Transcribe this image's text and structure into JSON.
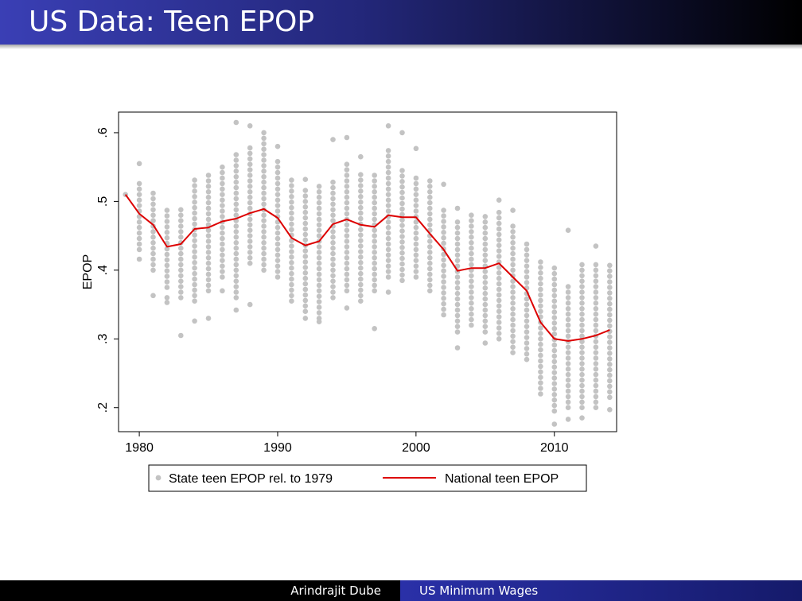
{
  "slide": {
    "title": "US Data: Teen EPOP",
    "footer_author": "Arindrajit Dube",
    "footer_talk": "US Minimum Wages"
  },
  "colors": {
    "header_start": "#3a3fb5",
    "header_end": "#000000",
    "scatter": "#c3c3c3",
    "line": "#dd0000"
  },
  "chart_data": {
    "type": "scatter",
    "title": "",
    "xlabel": "",
    "ylabel": "EPOP",
    "xlim": [
      1978.5,
      2014.5
    ],
    "ylim": [
      0.165,
      0.63
    ],
    "xticks": [
      1980,
      1990,
      2000,
      2010
    ],
    "xtick_labels": [
      "1980",
      "1990",
      "2000",
      "2010"
    ],
    "yticks": [
      0.2,
      0.3,
      0.4,
      0.5,
      0.6
    ],
    "ytick_labels": [
      ".2",
      ".3",
      ".4",
      ".5",
      ".6"
    ],
    "grid": false,
    "legend": {
      "placement": "bottom",
      "entries": [
        "State teen EPOP rel. to 1979",
        "National teen EPOP"
      ]
    },
    "series": [
      {
        "name": "State teen EPOP rel. to 1979",
        "kind": "scatter",
        "columns": [
          {
            "x": 1979,
            "range": [
              0.51,
              0.51
            ]
          },
          {
            "x": 1980,
            "range": [
              0.43,
              0.53
            ],
            "extra": [
              0.416,
              0.555
            ]
          },
          {
            "x": 1981,
            "range": [
              0.4,
              0.515
            ],
            "extra": [
              0.363
            ]
          },
          {
            "x": 1982,
            "range": [
              0.375,
              0.488
            ],
            "extra": [
              0.353,
              0.36
            ]
          },
          {
            "x": 1983,
            "range": [
              0.36,
              0.49
            ],
            "extra": [
              0.305
            ]
          },
          {
            "x": 1984,
            "range": [
              0.355,
              0.535
            ],
            "extra": [
              0.326
            ]
          },
          {
            "x": 1985,
            "range": [
              0.37,
              0.545
            ],
            "extra": [
              0.33
            ]
          },
          {
            "x": 1986,
            "range": [
              0.39,
              0.555
            ],
            "extra": [
              0.37
            ]
          },
          {
            "x": 1987,
            "range": [
              0.36,
              0.57
            ],
            "extra": [
              0.342,
              0.615
            ]
          },
          {
            "x": 1988,
            "range": [
              0.41,
              0.58
            ],
            "extra": [
              0.35,
              0.61
            ]
          },
          {
            "x": 1989,
            "range": [
              0.4,
              0.6
            ]
          },
          {
            "x": 1990,
            "range": [
              0.39,
              0.565
            ],
            "extra": [
              0.58
            ]
          },
          {
            "x": 1991,
            "range": [
              0.355,
              0.535
            ]
          },
          {
            "x": 1992,
            "range": [
              0.34,
              0.52
            ],
            "extra": [
              0.33,
              0.532
            ]
          },
          {
            "x": 1993,
            "range": [
              0.33,
              0.525
            ],
            "extra": [
              0.325
            ]
          },
          {
            "x": 1994,
            "range": [
              0.36,
              0.535
            ],
            "extra": [
              0.59
            ]
          },
          {
            "x": 1995,
            "range": [
              0.37,
              0.555
            ],
            "extra": [
              0.345,
              0.593
            ]
          },
          {
            "x": 1996,
            "range": [
              0.355,
              0.54
            ],
            "extra": [
              0.565
            ]
          },
          {
            "x": 1997,
            "range": [
              0.37,
              0.545
            ],
            "extra": [
              0.315
            ]
          },
          {
            "x": 1998,
            "range": [
              0.39,
              0.58
            ],
            "extra": [
              0.368,
              0.61
            ]
          },
          {
            "x": 1999,
            "range": [
              0.385,
              0.545
            ],
            "extra": [
              0.6
            ]
          },
          {
            "x": 2000,
            "range": [
              0.39,
              0.535
            ],
            "extra": [
              0.577
            ]
          },
          {
            "x": 2001,
            "range": [
              0.37,
              0.53
            ]
          },
          {
            "x": 2002,
            "range": [
              0.335,
              0.49
            ],
            "extra": [
              0.525
            ]
          },
          {
            "x": 2003,
            "range": [
              0.31,
              0.47
            ],
            "extra": [
              0.287,
              0.49
            ]
          },
          {
            "x": 2004,
            "range": [
              0.32,
              0.48
            ]
          },
          {
            "x": 2005,
            "range": [
              0.31,
              0.48
            ],
            "extra": [
              0.294
            ]
          },
          {
            "x": 2006,
            "range": [
              0.3,
              0.49
            ],
            "extra": [
              0.502
            ]
          },
          {
            "x": 2007,
            "range": [
              0.28,
              0.465
            ],
            "extra": [
              0.487
            ]
          },
          {
            "x": 2008,
            "range": [
              0.27,
              0.445
            ]
          },
          {
            "x": 2009,
            "range": [
              0.22,
              0.415
            ]
          },
          {
            "x": 2010,
            "range": [
              0.195,
              0.405
            ],
            "extra": [
              0.176
            ]
          },
          {
            "x": 2011,
            "range": [
              0.2,
              0.38
            ],
            "extra": [
              0.183,
              0.458
            ]
          },
          {
            "x": 2012,
            "range": [
              0.2,
              0.41
            ],
            "extra": [
              0.185
            ]
          },
          {
            "x": 2013,
            "range": [
              0.2,
              0.415
            ],
            "extra": [
              0.435
            ]
          },
          {
            "x": 2014,
            "range": [
              0.215,
              0.41
            ],
            "extra": [
              0.197
            ]
          }
        ]
      },
      {
        "name": "National teen EPOP",
        "kind": "line",
        "x": [
          1979,
          1980,
          1981,
          1982,
          1983,
          1984,
          1985,
          1986,
          1987,
          1988,
          1989,
          1990,
          1991,
          1992,
          1993,
          1994,
          1995,
          1996,
          1997,
          1998,
          1999,
          2000,
          2001,
          2002,
          2003,
          2004,
          2005,
          2006,
          2007,
          2008,
          2009,
          2010,
          2011,
          2012,
          2013,
          2014
        ],
        "y": [
          0.51,
          0.482,
          0.466,
          0.434,
          0.438,
          0.46,
          0.462,
          0.471,
          0.475,
          0.483,
          0.489,
          0.476,
          0.447,
          0.436,
          0.442,
          0.467,
          0.474,
          0.466,
          0.463,
          0.48,
          0.477,
          0.477,
          0.453,
          0.43,
          0.399,
          0.403,
          0.403,
          0.41,
          0.39,
          0.37,
          0.324,
          0.3,
          0.297,
          0.3,
          0.305,
          0.313
        ]
      }
    ]
  }
}
